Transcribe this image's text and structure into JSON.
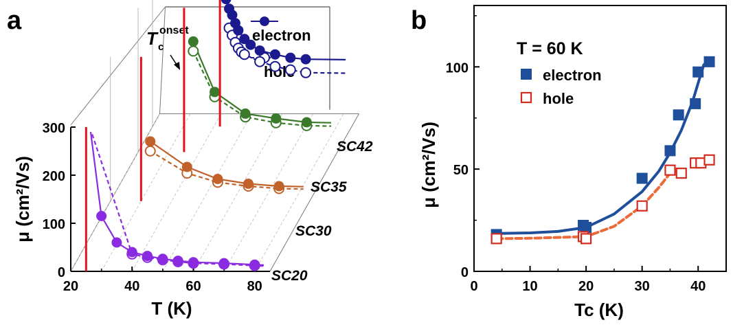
{
  "panel_a": {
    "label": "a",
    "y_axis_label": "μ (cm²/Vs)",
    "x_axis_label": "T (K)",
    "onset_label": "onset",
    "legend": {
      "electron": "electron",
      "hole": "hole"
    },
    "colors": {
      "SC20": "#8a2be2",
      "SC30": "#c0622a",
      "SC35": "#3a7a2a",
      "SC42": "#1b1b8f",
      "tc_line": "#e0141e"
    }
  },
  "panel_b": {
    "label": "b",
    "annotation": "T = 60 K",
    "legend": {
      "electron": "electron",
      "hole": "hole"
    },
    "colors": {
      "electron": "#1f4e9a",
      "hole": "#d42b1e",
      "hole_fit": "#ec6a3a"
    }
  },
  "chart_data": [
    {
      "id": "panel-a",
      "type": "line",
      "xlabel": "T (K)",
      "ylabel": "μ (cm²/Vs)",
      "xlim": [
        20,
        85
      ],
      "ylim": [
        0,
        300
      ],
      "x_ticks": [
        20,
        40,
        60,
        80
      ],
      "y_ticks": [
        0,
        100,
        200,
        300
      ],
      "series_names": [
        "SC20",
        "SC30",
        "SC35",
        "SC42"
      ],
      "legend": [
        "electron",
        "hole"
      ],
      "series": [
        {
          "name": "SC20",
          "tc_onset": 25,
          "electron": {
            "x": [
              30,
              35,
              40,
              45,
              50,
              55,
              60,
              70,
              80
            ],
            "y": [
              115,
              60,
              40,
              32,
              26,
              22,
              19,
              17,
              14
            ]
          },
          "hole": {
            "x": [
              40,
              45,
              50,
              55,
              60,
              70,
              80
            ],
            "y": [
              36,
              29,
              24,
              20,
              17,
              15,
              12
            ]
          }
        },
        {
          "name": "SC30",
          "tc_onset": 30,
          "electron": {
            "x": [
              33,
              45,
              55,
              65,
              75
            ],
            "y": [
              124,
              71,
              46,
              36,
              31
            ]
          },
          "hole": {
            "x": [
              33,
              45,
              55,
              65,
              75
            ],
            "y": [
              104,
              58,
              39,
              31,
              26
            ]
          }
        },
        {
          "name": "SC35",
          "tc_onset": 35,
          "electron": {
            "x": [
              38,
              45,
              55,
              65,
              75
            ],
            "y": [
              230,
              125,
              80,
              70,
              62
            ]
          },
          "hole": {
            "x": [
              38,
              45,
              55,
              65,
              75
            ],
            "y": [
              210,
              115,
              73,
              61,
              55
            ]
          }
        },
        {
          "name": "SC42",
          "tc_onset": 42,
          "electron": {
            "x": [
              44,
              45,
              46,
              47,
              48,
              50,
              52,
              55,
              60,
              65,
              70
            ],
            "y": [
              265,
              245,
              232,
              215,
              200,
              182,
              170,
              158,
              150,
              143,
              140
            ]
          },
          "hole": {
            "x": [
              45,
              46,
              47,
              48,
              49,
              50,
              55,
              60,
              65,
              70
            ],
            "y": [
              205,
              190,
              175,
              163,
              155,
              150,
              135,
              125,
              118,
              112
            ]
          }
        }
      ]
    },
    {
      "id": "panel-b",
      "type": "scatter",
      "xlabel": "Tc (K)",
      "ylabel": "μ (cm²/Vs)",
      "xlim": [
        0,
        45
      ],
      "ylim": [
        0,
        130
      ],
      "x_ticks": [
        0,
        10,
        20,
        30,
        40
      ],
      "y_ticks": [
        0,
        50,
        100
      ],
      "series": [
        {
          "name": "electron",
          "marker": "filled-square",
          "x": [
            4,
            19.5,
            20,
            30,
            35,
            36.5,
            39.5,
            40,
            42
          ],
          "y": [
            18,
            22.5,
            21.5,
            45.5,
            59,
            76.5,
            82,
            97.5,
            102.5
          ]
        },
        {
          "name": "hole",
          "marker": "open-square",
          "x": [
            4,
            19.5,
            20,
            30,
            35,
            37,
            39.5,
            40.5,
            42
          ],
          "y": [
            16,
            17,
            16,
            32,
            49.5,
            48,
            53,
            53,
            54.5
          ]
        }
      ],
      "fits": [
        {
          "series": "electron",
          "style": "solid",
          "x": [
            4,
            10,
            15,
            20,
            25,
            30,
            33,
            35,
            37,
            39,
            40,
            41
          ],
          "y": [
            18.5,
            18.8,
            19.5,
            21.5,
            28,
            39,
            49,
            58,
            69,
            83,
            92,
            101
          ]
        },
        {
          "series": "hole",
          "style": "dashed",
          "x": [
            4,
            10,
            15,
            20,
            25,
            30,
            33,
            35,
            37
          ],
          "y": [
            16,
            16.2,
            16.6,
            17,
            22,
            32,
            41,
            48,
            50
          ]
        }
      ]
    }
  ]
}
